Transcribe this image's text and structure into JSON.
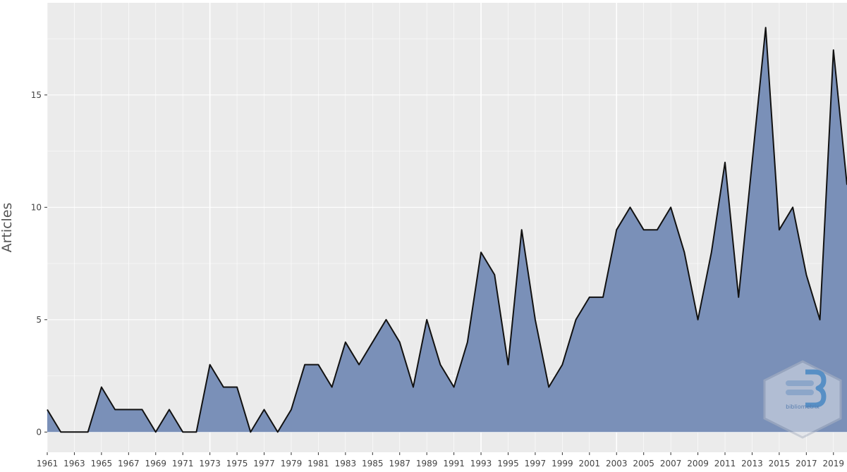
{
  "chart_data": {
    "type": "area",
    "title": "",
    "xlabel": "",
    "ylabel": "Articles",
    "x": [
      1961,
      1962,
      1963,
      1964,
      1965,
      1966,
      1967,
      1968,
      1969,
      1970,
      1971,
      1972,
      1973,
      1974,
      1975,
      1976,
      1977,
      1978,
      1979,
      1980,
      1981,
      1982,
      1983,
      1984,
      1985,
      1986,
      1987,
      1988,
      1989,
      1990,
      1991,
      1992,
      1993,
      1994,
      1995,
      1996,
      1997,
      1998,
      1999,
      2000,
      2001,
      2002,
      2003,
      2004,
      2005,
      2006,
      2007,
      2008,
      2009,
      2010,
      2011,
      2012,
      2013,
      2014,
      2015,
      2016,
      2017,
      2018,
      2019,
      2020
    ],
    "values": [
      1,
      0,
      0,
      0,
      2,
      1,
      1,
      1,
      0,
      1,
      0,
      0,
      3,
      2,
      2,
      0,
      1,
      0,
      1,
      3,
      3,
      2,
      4,
      3,
      4,
      5,
      4,
      2,
      5,
      3,
      2,
      4,
      8,
      7,
      3,
      9,
      5,
      2,
      3,
      5,
      6,
      6,
      9,
      10,
      9,
      9,
      10,
      8,
      5,
      8,
      12,
      6,
      12,
      18,
      9,
      10,
      7,
      5,
      17,
      11
    ],
    "xlim": [
      1961,
      2020
    ],
    "ylim": [
      -0.9,
      19.1
    ],
    "x_ticks": [
      "1961",
      "1963",
      "1965",
      "1967",
      "1969",
      "1971",
      "1973",
      "1975",
      "1977",
      "1979",
      "1981",
      "1983",
      "1985",
      "1987",
      "1989",
      "1991",
      "1993",
      "1995",
      "1997",
      "1999",
      "2001",
      "2003",
      "2005",
      "2007",
      "2009",
      "2011",
      "2013",
      "2015",
      "2017",
      "2019"
    ],
    "y_ticks": [
      "0",
      "5",
      "10",
      "15"
    ],
    "grid": true,
    "colors": {
      "fill": "#7a90b8",
      "line": "#111111",
      "panel": "#ebebeb",
      "grid": "#ffffff"
    }
  },
  "watermark": {
    "brand_text": "bibliometrix",
    "icon": "bibliometrix-logo-icon"
  }
}
